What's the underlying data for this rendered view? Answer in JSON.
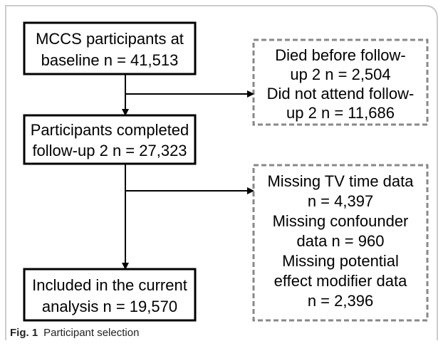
{
  "nodes": [
    {
      "lines": [
        "MCCS participants at",
        "baseline  n = 41,513"
      ]
    },
    {
      "lines": [
        "Died before follow-",
        "up 2 n = 2,504",
        "Did not attend follow-",
        "up 2 n = 11,686"
      ]
    },
    {
      "lines": [
        "Participants completed",
        "follow-up 2 n = 27,323"
      ]
    },
    {
      "lines": [
        "Missing TV time data",
        "n = 4,397",
        "Missing confounder",
        "data n = 960",
        "Missing potential",
        "effect modifier data",
        "n = 2,396"
      ]
    },
    {
      "lines": [
        "Included in the current",
        "analysis n = 19,570"
      ]
    }
  ],
  "caption": {
    "label": "Fig. 1",
    "text": "Participant selection"
  }
}
